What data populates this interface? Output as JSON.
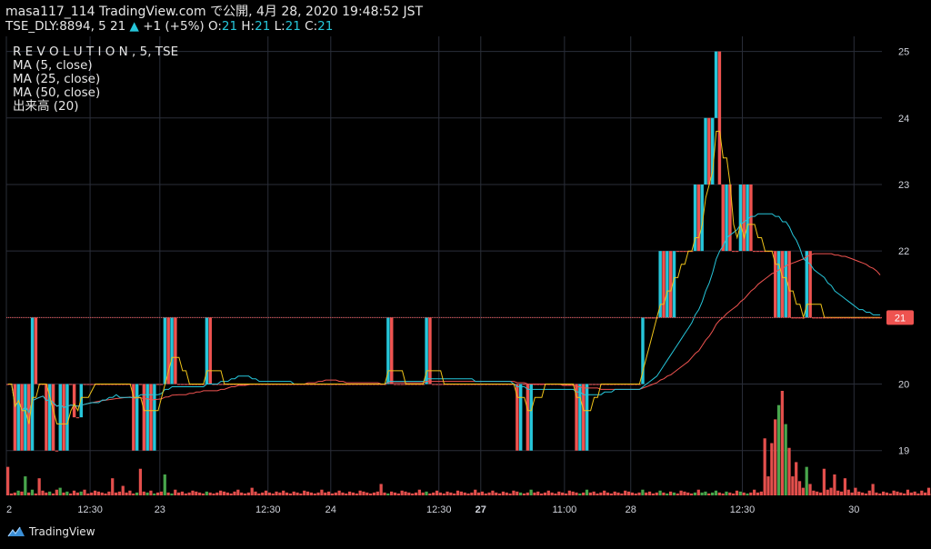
{
  "header": {
    "line1": "masa117_114 TradingView.com で公開, 4月 28, 2020 19:48:52 JST",
    "symbol": "TSE_DLY:8894, 5",
    "last": "21",
    "change": "+1 (+5%)",
    "o_label": "O:",
    "o_val": "21",
    "h_label": "H:",
    "h_val": "21",
    "l_label": "L:",
    "l_val": "21",
    "c_label": "C:",
    "c_val": "21"
  },
  "legend": {
    "series_name": "R E V O L U T I O N , 5, TSE",
    "ma5": "MA (5, close)",
    "ma25": "MA (25, close)",
    "ma50": "MA (50, close)",
    "volume": "出来高 (20)"
  },
  "brand": {
    "logo_text": "TradingView"
  },
  "colors": {
    "background": "#000000",
    "up": "#26c6da",
    "down": "#ef5350",
    "ma5": "#f0c419",
    "ma25": "#26c6da",
    "ma50": "#ef5350",
    "grid": "#2a2e39",
    "price_tag": "#ef5350"
  },
  "chart_data": {
    "type": "line",
    "timeframe": "5",
    "ylim": [
      18.6,
      25.5
    ],
    "y_ticks": [
      "19",
      "20",
      "21",
      "22",
      "23",
      "24",
      "25"
    ],
    "x_ticks": [
      "2",
      "12:30",
      "23",
      "12:30",
      "24",
      "12:30",
      "27",
      "11:00",
      "28",
      "12:30",
      "30"
    ],
    "x_tick_bold": [
      false,
      false,
      false,
      false,
      false,
      false,
      true,
      false,
      false,
      false,
      false
    ],
    "x_tick_bar": [
      0,
      24,
      44,
      75,
      93,
      124,
      136,
      160,
      179,
      211,
      243
    ],
    "last_price_label": "21",
    "last_price": 21,
    "candles": [
      {
        "o": 20,
        "c": 20
      },
      {
        "o": 20,
        "c": 20
      },
      {
        "o": 20,
        "c": 19
      },
      {
        "o": 19,
        "c": 20
      },
      {
        "o": 20,
        "c": 19
      },
      {
        "o": 19,
        "c": 20
      },
      {
        "o": 20,
        "c": 19
      },
      {
        "o": 19,
        "c": 21
      },
      {
        "o": 21,
        "c": 20
      },
      {
        "o": 20,
        "c": 20
      },
      {
        "o": 20,
        "c": 20
      },
      {
        "o": 20,
        "c": 19
      },
      {
        "o": 19,
        "c": 20
      },
      {
        "o": 20,
        "c": 19
      },
      {
        "o": 19,
        "c": 19
      },
      {
        "o": 19,
        "c": 20
      },
      {
        "o": 20,
        "c": 19
      },
      {
        "o": 19,
        "c": 20
      },
      {
        "o": 20,
        "c": 20
      },
      {
        "o": 20,
        "c": 19.5
      },
      {
        "o": 19.5,
        "c": 19.5
      },
      {
        "o": 19.5,
        "c": 20
      },
      {
        "o": 20,
        "c": 20
      },
      {
        "o": 20,
        "c": 20
      },
      {
        "o": 20,
        "c": 20
      },
      {
        "o": 20,
        "c": 20
      },
      {
        "o": 20,
        "c": 20
      },
      {
        "o": 20,
        "c": 20
      },
      {
        "o": 20,
        "c": 20
      },
      {
        "o": 20,
        "c": 20
      },
      {
        "o": 20,
        "c": 20
      },
      {
        "o": 20,
        "c": 20
      },
      {
        "o": 20,
        "c": 20
      },
      {
        "o": 20,
        "c": 20
      },
      {
        "o": 20,
        "c": 20
      },
      {
        "o": 20,
        "c": 20
      },
      {
        "o": 20,
        "c": 19
      },
      {
        "o": 19,
        "c": 20
      },
      {
        "o": 20,
        "c": 20
      },
      {
        "o": 20,
        "c": 19
      },
      {
        "o": 19,
        "c": 20
      },
      {
        "o": 20,
        "c": 19
      },
      {
        "o": 19,
        "c": 20
      },
      {
        "o": 20,
        "c": 20
      },
      {
        "o": 20,
        "c": 20
      },
      {
        "o": 20,
        "c": 21
      },
      {
        "o": 21,
        "c": 20
      },
      {
        "o": 20,
        "c": 21
      },
      {
        "o": 21,
        "c": 20
      },
      {
        "o": 20,
        "c": 20
      },
      {
        "o": 20,
        "c": 20
      },
      {
        "o": 20,
        "c": 20
      },
      {
        "o": 20,
        "c": 20
      },
      {
        "o": 20,
        "c": 20
      },
      {
        "o": 20,
        "c": 20
      },
      {
        "o": 20,
        "c": 20
      },
      {
        "o": 20,
        "c": 20
      },
      {
        "o": 20,
        "c": 21
      },
      {
        "o": 21,
        "c": 20
      },
      {
        "o": 20,
        "c": 20
      },
      {
        "o": 20,
        "c": 20
      },
      {
        "o": 20,
        "c": 20
      },
      {
        "o": 20,
        "c": 20
      },
      {
        "o": 20,
        "c": 20
      },
      {
        "o": 20,
        "c": 20
      },
      {
        "o": 20,
        "c": 20
      },
      {
        "o": 20,
        "c": 20
      },
      {
        "o": 20,
        "c": 20
      },
      {
        "o": 20,
        "c": 20
      },
      {
        "o": 20,
        "c": 20
      },
      {
        "o": 20,
        "c": 20
      },
      {
        "o": 20,
        "c": 20
      },
      {
        "o": 20,
        "c": 20
      },
      {
        "o": 20,
        "c": 20
      },
      {
        "o": 20,
        "c": 20
      },
      {
        "o": 20,
        "c": 20
      },
      {
        "o": 20,
        "c": 20
      },
      {
        "o": 20,
        "c": 20
      },
      {
        "o": 20,
        "c": 20
      },
      {
        "o": 20,
        "c": 20
      },
      {
        "o": 20,
        "c": 20
      },
      {
        "o": 20,
        "c": 20
      },
      {
        "o": 20,
        "c": 20
      },
      {
        "o": 20,
        "c": 20
      },
      {
        "o": 20,
        "c": 20
      },
      {
        "o": 20,
        "c": 20
      },
      {
        "o": 20,
        "c": 20
      },
      {
        "o": 20,
        "c": 20
      },
      {
        "o": 20,
        "c": 20
      },
      {
        "o": 20,
        "c": 20
      },
      {
        "o": 20,
        "c": 20
      },
      {
        "o": 20,
        "c": 20
      },
      {
        "o": 20,
        "c": 20
      },
      {
        "o": 20,
        "c": 20
      },
      {
        "o": 20,
        "c": 20
      },
      {
        "o": 20,
        "c": 20
      },
      {
        "o": 20,
        "c": 20
      },
      {
        "o": 20,
        "c": 20
      },
      {
        "o": 20,
        "c": 20
      },
      {
        "o": 20,
        "c": 20
      },
      {
        "o": 20,
        "c": 20
      },
      {
        "o": 20,
        "c": 20
      },
      {
        "o": 20,
        "c": 20
      },
      {
        "o": 20,
        "c": 20
      },
      {
        "o": 20,
        "c": 20
      },
      {
        "o": 20,
        "c": 20
      },
      {
        "o": 20,
        "c": 20
      },
      {
        "o": 20,
        "c": 20
      },
      {
        "o": 20,
        "c": 20
      },
      {
        "o": 20,
        "c": 21
      },
      {
        "o": 21,
        "c": 20
      },
      {
        "o": 20,
        "c": 20
      },
      {
        "o": 20,
        "c": 20
      },
      {
        "o": 20,
        "c": 20
      },
      {
        "o": 20,
        "c": 20
      },
      {
        "o": 20,
        "c": 20
      },
      {
        "o": 20,
        "c": 20
      },
      {
        "o": 20,
        "c": 20
      },
      {
        "o": 20,
        "c": 20
      },
      {
        "o": 20,
        "c": 20
      },
      {
        "o": 20,
        "c": 21
      },
      {
        "o": 21,
        "c": 20
      },
      {
        "o": 20,
        "c": 20
      },
      {
        "o": 20,
        "c": 20
      },
      {
        "o": 20,
        "c": 20
      },
      {
        "o": 20,
        "c": 20
      },
      {
        "o": 20,
        "c": 20
      },
      {
        "o": 20,
        "c": 20
      },
      {
        "o": 20,
        "c": 20
      },
      {
        "o": 20,
        "c": 20
      },
      {
        "o": 20,
        "c": 20
      },
      {
        "o": 20,
        "c": 20
      },
      {
        "o": 20,
        "c": 20
      },
      {
        "o": 20,
        "c": 20
      },
      {
        "o": 20,
        "c": 20
      },
      {
        "o": 20,
        "c": 20
      },
      {
        "o": 20,
        "c": 20
      },
      {
        "o": 20,
        "c": 20
      },
      {
        "o": 20,
        "c": 20
      },
      {
        "o": 20,
        "c": 20
      },
      {
        "o": 20,
        "c": 20
      },
      {
        "o": 20,
        "c": 20
      },
      {
        "o": 20,
        "c": 20
      },
      {
        "o": 20,
        "c": 20
      },
      {
        "o": 20,
        "c": 20
      },
      {
        "o": 20,
        "c": 20
      },
      {
        "o": 20,
        "c": 19
      },
      {
        "o": 19,
        "c": 20
      },
      {
        "o": 20,
        "c": 20
      },
      {
        "o": 20,
        "c": 19
      },
      {
        "o": 19,
        "c": 20
      },
      {
        "o": 20,
        "c": 20
      },
      {
        "o": 20,
        "c": 20
      },
      {
        "o": 20,
        "c": 20
      },
      {
        "o": 20,
        "c": 20
      },
      {
        "o": 20,
        "c": 20
      },
      {
        "o": 20,
        "c": 20
      },
      {
        "o": 20,
        "c": 20
      },
      {
        "o": 20,
        "c": 20
      },
      {
        "o": 20,
        "c": 20
      },
      {
        "o": 20,
        "c": 20
      },
      {
        "o": 20,
        "c": 20
      },
      {
        "o": 20,
        "c": 20
      },
      {
        "o": 20,
        "c": 19
      },
      {
        "o": 19,
        "c": 20
      },
      {
        "o": 20,
        "c": 19
      },
      {
        "o": 19,
        "c": 20
      },
      {
        "o": 20,
        "c": 20
      },
      {
        "o": 20,
        "c": 20
      },
      {
        "o": 20,
        "c": 20
      },
      {
        "o": 20,
        "c": 20
      },
      {
        "o": 20,
        "c": 20
      },
      {
        "o": 20,
        "c": 20
      },
      {
        "o": 20,
        "c": 20
      },
      {
        "o": 20,
        "c": 20
      },
      {
        "o": 20,
        "c": 20
      },
      {
        "o": 20,
        "c": 20
      },
      {
        "o": 20,
        "c": 20
      },
      {
        "o": 20,
        "c": 20
      },
      {
        "o": 20,
        "c": 20
      },
      {
        "o": 20,
        "c": 20
      },
      {
        "o": 20,
        "c": 20
      },
      {
        "o": 20,
        "c": 21
      },
      {
        "o": 21,
        "c": 21
      },
      {
        "o": 21,
        "c": 21
      },
      {
        "o": 21,
        "c": 21
      },
      {
        "o": 21,
        "c": 21
      },
      {
        "o": 21,
        "c": 22
      },
      {
        "o": 22,
        "c": 21
      },
      {
        "o": 21,
        "c": 22
      },
      {
        "o": 22,
        "c": 21
      },
      {
        "o": 21,
        "c": 22
      },
      {
        "o": 22,
        "c": 22
      },
      {
        "o": 22,
        "c": 22
      },
      {
        "o": 22,
        "c": 22
      },
      {
        "o": 22,
        "c": 22
      },
      {
        "o": 22,
        "c": 22
      },
      {
        "o": 22,
        "c": 23
      },
      {
        "o": 23,
        "c": 22
      },
      {
        "o": 22,
        "c": 23
      },
      {
        "o": 23,
        "c": 24
      },
      {
        "o": 24,
        "c": 23
      },
      {
        "o": 23,
        "c": 24
      },
      {
        "o": 24,
        "c": 25
      },
      {
        "o": 25,
        "c": 23
      },
      {
        "o": 23,
        "c": 22
      },
      {
        "o": 22,
        "c": 23
      },
      {
        "o": 23,
        "c": 22
      },
      {
        "o": 22,
        "c": 22
      },
      {
        "o": 22,
        "c": 22
      },
      {
        "o": 22,
        "c": 23
      },
      {
        "o": 23,
        "c": 22
      },
      {
        "o": 22,
        "c": 23
      },
      {
        "o": 23,
        "c": 22
      },
      {
        "o": 22,
        "c": 22
      },
      {
        "o": 22,
        "c": 22
      },
      {
        "o": 22,
        "c": 22
      },
      {
        "o": 22,
        "c": 22
      },
      {
        "o": 22,
        "c": 22
      },
      {
        "o": 22,
        "c": 22
      },
      {
        "o": 22,
        "c": 21
      },
      {
        "o": 21,
        "c": 22
      },
      {
        "o": 22,
        "c": 21
      },
      {
        "o": 21,
        "c": 22
      },
      {
        "o": 22,
        "c": 21
      },
      {
        "o": 21,
        "c": 21
      },
      {
        "o": 21,
        "c": 21
      },
      {
        "o": 21,
        "c": 21
      },
      {
        "o": 21,
        "c": 21
      },
      {
        "o": 21,
        "c": 22
      },
      {
        "o": 22,
        "c": 21
      },
      {
        "o": 21,
        "c": 21
      },
      {
        "o": 21,
        "c": 21
      },
      {
        "o": 21,
        "c": 21
      },
      {
        "o": 21,
        "c": 21
      },
      {
        "o": 21,
        "c": 21
      },
      {
        "o": 21,
        "c": 21
      },
      {
        "o": 21,
        "c": 21
      },
      {
        "o": 21,
        "c": 21
      },
      {
        "o": 21,
        "c": 21
      },
      {
        "o": 21,
        "c": 21
      },
      {
        "o": 21,
        "c": 21
      },
      {
        "o": 21,
        "c": 21
      },
      {
        "o": 21,
        "c": 21
      },
      {
        "o": 21,
        "c": 21
      },
      {
        "o": 21,
        "c": 21
      },
      {
        "o": 21,
        "c": 21
      },
      {
        "o": 21,
        "c": 21
      },
      {
        "o": 21,
        "c": 21
      },
      {
        "o": 21,
        "c": 21
      },
      {
        "o": 21,
        "c": 21
      }
    ],
    "volume": [
      30,
      2,
      3,
      5,
      4,
      20,
      3,
      6,
      2,
      18,
      5,
      3,
      4,
      2,
      6,
      8,
      3,
      4,
      2,
      5,
      3,
      4,
      6,
      2,
      3,
      5,
      4,
      3,
      2,
      4,
      18,
      3,
      4,
      10,
      3,
      5,
      2,
      3,
      28,
      4,
      3,
      5,
      2,
      3,
      4,
      22,
      3,
      2,
      6,
      3,
      4,
      2,
      3,
      5,
      4,
      3,
      2,
      4,
      3,
      2,
      3,
      5,
      4,
      3,
      2,
      4,
      6,
      3,
      2,
      3,
      8,
      4,
      2,
      3,
      5,
      3,
      2,
      4,
      3,
      5,
      3,
      2,
      4,
      3,
      2,
      5,
      4,
      3,
      2,
      3,
      6,
      3,
      4,
      2,
      3,
      5,
      3,
      2,
      4,
      3,
      2,
      5,
      4,
      3,
      2,
      3,
      4,
      12,
      3,
      2,
      4,
      3,
      2,
      5,
      4,
      3,
      2,
      3,
      6,
      3,
      4,
      2,
      3,
      5,
      3,
      2,
      4,
      3,
      2,
      5,
      4,
      3,
      2,
      3,
      6,
      3,
      4,
      2,
      3,
      5,
      3,
      2,
      4,
      3,
      2,
      5,
      4,
      3,
      2,
      3,
      6,
      3,
      4,
      2,
      3,
      5,
      3,
      2,
      4,
      3,
      2,
      5,
      4,
      3,
      2,
      3,
      6,
      3,
      4,
      2,
      3,
      5,
      3,
      2,
      4,
      3,
      2,
      5,
      4,
      3,
      2,
      3,
      6,
      3,
      4,
      2,
      3,
      5,
      3,
      2,
      4,
      3,
      2,
      5,
      4,
      3,
      2,
      3,
      6,
      3,
      4,
      2,
      3,
      5,
      3,
      2,
      4,
      3,
      2,
      5,
      4,
      3,
      2,
      3,
      6,
      3,
      4,
      60,
      20,
      55,
      80,
      95,
      110,
      75,
      50,
      20,
      35,
      15,
      8,
      30,
      12,
      5,
      4,
      3,
      28,
      6,
      8,
      22,
      5,
      4,
      18,
      6,
      3,
      8,
      4,
      3,
      2,
      5,
      12,
      3,
      2,
      4,
      3,
      2,
      5,
      4,
      3,
      2,
      6,
      3,
      4,
      2,
      5,
      3,
      8,
      2,
      3,
      25,
      4,
      3,
      5,
      30
    ]
  }
}
